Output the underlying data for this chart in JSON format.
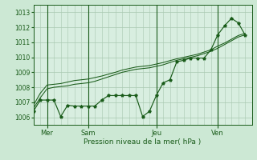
{
  "xlabel": "Pression niveau de la mer( hPa )",
  "bg_color": "#cce8d4",
  "plot_bg_color": "#d8eee0",
  "grid_color": "#a8c8b0",
  "line_color": "#1a5c1a",
  "ylim": [
    1005.5,
    1013.5
  ],
  "yticks": [
    1006,
    1007,
    1008,
    1009,
    1010,
    1011,
    1012,
    1013
  ],
  "xlim": [
    0,
    16
  ],
  "day_positions": [
    1,
    4,
    9,
    13.5
  ],
  "day_labels": [
    "Mer",
    "Sam",
    "Jeu",
    "Ven"
  ],
  "vline_positions": [
    1,
    4,
    9,
    13.5
  ],
  "x": [
    0,
    0.5,
    1.0,
    1.5,
    2.0,
    2.5,
    3.0,
    3.5,
    4.0,
    4.5,
    5.0,
    5.5,
    6.0,
    6.5,
    7.0,
    7.5,
    8.0,
    8.5,
    9.0,
    9.5,
    10.0,
    10.5,
    11.0,
    11.5,
    12.0,
    12.5,
    13.0,
    13.5,
    14.0,
    14.5,
    15.0,
    15.5
  ],
  "y_jagged": [
    1006.4,
    1007.15,
    1007.15,
    1007.15,
    1006.05,
    1006.8,
    1006.75,
    1006.75,
    1006.75,
    1006.75,
    1007.15,
    1007.45,
    1007.45,
    1007.45,
    1007.45,
    1007.45,
    1006.05,
    1006.4,
    1007.45,
    1008.3,
    1008.5,
    1009.7,
    1009.8,
    1009.95,
    1009.95,
    1009.95,
    1010.5,
    1011.5,
    1012.1,
    1012.6,
    1012.3,
    1011.5
  ],
  "y_smooth1": [
    1006.6,
    1007.3,
    1007.9,
    1008.0,
    1008.05,
    1008.1,
    1008.2,
    1008.25,
    1008.3,
    1008.4,
    1008.55,
    1008.7,
    1008.85,
    1009.0,
    1009.1,
    1009.2,
    1009.25,
    1009.3,
    1009.4,
    1009.5,
    1009.65,
    1009.8,
    1009.9,
    1010.0,
    1010.1,
    1010.25,
    1010.4,
    1010.6,
    1010.85,
    1011.1,
    1011.35,
    1011.5
  ],
  "y_smooth2": [
    1006.8,
    1007.6,
    1008.15,
    1008.2,
    1008.25,
    1008.35,
    1008.45,
    1008.5,
    1008.55,
    1008.65,
    1008.75,
    1008.88,
    1009.0,
    1009.15,
    1009.25,
    1009.35,
    1009.4,
    1009.45,
    1009.55,
    1009.65,
    1009.78,
    1009.9,
    1010.0,
    1010.1,
    1010.2,
    1010.35,
    1010.5,
    1010.75,
    1010.95,
    1011.2,
    1011.45,
    1011.6
  ]
}
